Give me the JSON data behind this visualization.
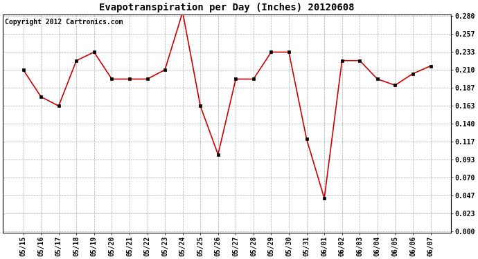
{
  "title": "Evapotranspiration per Day (Inches) 20120608",
  "copyright_text": "Copyright 2012 Cartronics.com",
  "dates": [
    "05/15",
    "05/16",
    "05/17",
    "05/18",
    "05/19",
    "05/20",
    "05/21",
    "05/22",
    "05/23",
    "05/24",
    "05/25",
    "05/26",
    "05/27",
    "05/28",
    "05/29",
    "05/30",
    "05/31",
    "06/01",
    "06/02",
    "06/03",
    "06/04",
    "06/05",
    "06/06",
    "06/07"
  ],
  "values": [
    0.21,
    0.175,
    0.163,
    0.222,
    0.233,
    0.198,
    0.198,
    0.198,
    0.21,
    0.285,
    0.163,
    0.1,
    0.198,
    0.198,
    0.233,
    0.233,
    0.12,
    0.043,
    0.222,
    0.222,
    0.198,
    0.19,
    0.205,
    0.215
  ],
  "line_color": "#cc0000",
  "marker": "s",
  "marker_size": 2.5,
  "bg_color": "#ffffff",
  "plot_bg_color": "#ffffff",
  "grid_color": "#aaaaaa",
  "ylim_min": 0.0,
  "ylim_max": 0.28,
  "yticks": [
    0.0,
    0.023,
    0.047,
    0.07,
    0.093,
    0.117,
    0.14,
    0.163,
    0.187,
    0.21,
    0.233,
    0.257,
    0.28
  ],
  "title_fontsize": 10,
  "tick_fontsize": 7,
  "copyright_fontsize": 7
}
